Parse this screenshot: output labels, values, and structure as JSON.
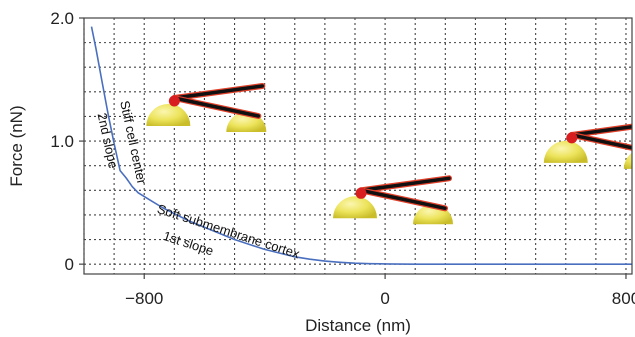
{
  "chart_data": {
    "type": "line",
    "title": "",
    "xlabel": "Distance (nm)",
    "ylabel": "Force (nN)",
    "xlim": [
      -1000,
      820
    ],
    "ylim": [
      -0.08,
      2.0
    ],
    "x_ticks": [
      -800,
      0,
      800
    ],
    "x_tick_labels": [
      "−800",
      "0",
      "800"
    ],
    "y_ticks": [
      0,
      1.0,
      2.0
    ],
    "y_tick_labels": [
      "0",
      "1.0",
      "2.0"
    ],
    "grid": true,
    "series": [
      {
        "color": "#4a6fbf",
        "x": [
          -975,
          -960,
          -940,
          -920,
          -900,
          -880,
          -860,
          -840,
          -820,
          -780,
          -740,
          -700,
          -650,
          -600,
          -550,
          -500,
          -450,
          -400,
          -350,
          -300,
          -250,
          -200,
          -150,
          -100,
          -50,
          0,
          100,
          200,
          400,
          600,
          800,
          820
        ],
        "y": [
          1.93,
          1.75,
          1.48,
          1.22,
          0.98,
          0.76,
          0.7,
          0.63,
          0.58,
          0.52,
          0.46,
          0.41,
          0.35,
          0.3,
          0.25,
          0.2,
          0.16,
          0.12,
          0.09,
          0.06,
          0.04,
          0.025,
          0.015,
          0.008,
          0.004,
          0.002,
          0.0,
          0.0,
          0.0,
          0.0,
          0.0,
          0.0
        ]
      }
    ],
    "annotations": [
      {
        "text": "Stiff cell center",
        "x": -880,
        "y": 1.32,
        "angle": 78
      },
      {
        "text": "2nd slope",
        "x": -955,
        "y": 1.22,
        "angle": 78
      },
      {
        "text": "Soft submembrane cortex",
        "x": -760,
        "y": 0.42,
        "angle": 18
      },
      {
        "text": "1st slope",
        "x": -740,
        "y": 0.2,
        "angle": 18
      }
    ],
    "icons": [
      {
        "name": "cantilever-tip-stiff-center-icon",
        "x": -700,
        "y": 1.35
      },
      {
        "name": "cantilever-tip-cortex-icon",
        "x": -80,
        "y": 0.6
      },
      {
        "name": "cantilever-tip-free-icon",
        "x": 620,
        "y": 1.05
      }
    ],
    "colors": {
      "curve": "#4a6fbf",
      "grid": "#444444",
      "cell": "#f0e85a",
      "cantilever": "#111111",
      "cantilever_edge": "#e0402a",
      "tip": "#d81e1e"
    }
  }
}
